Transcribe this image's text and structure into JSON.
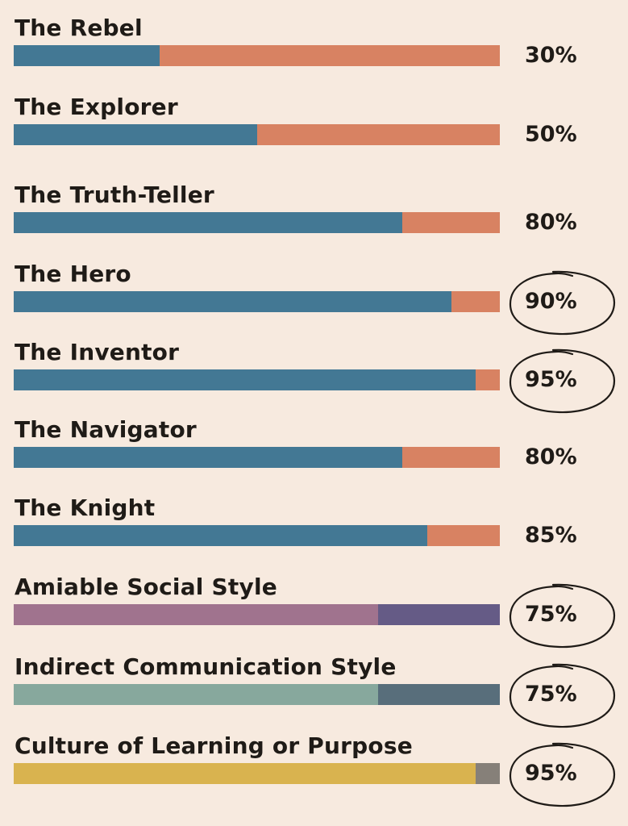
{
  "chart_data": {
    "type": "bar",
    "orientation": "horizontal",
    "stacked_to_100": true,
    "categories": [
      "The Rebel",
      "The Explorer",
      "The Truth-Teller",
      "The Hero",
      "The Inventor",
      "The Navigator",
      "The Knight",
      "Amiable Social Style",
      "Indirect Communication Style",
      "Culture of Learning or Purpose"
    ],
    "values": [
      30,
      50,
      80,
      90,
      95,
      80,
      85,
      75,
      75,
      95
    ],
    "value_labels": [
      "30%",
      "50%",
      "80%",
      "90%",
      "95%",
      "80%",
      "85%",
      "75%",
      "75%",
      "95%"
    ],
    "circled": [
      false,
      false,
      false,
      true,
      true,
      false,
      false,
      true,
      true,
      true
    ],
    "fill_colors": [
      "#437894",
      "#437894",
      "#437894",
      "#437894",
      "#437894",
      "#437894",
      "#437894",
      "#a0738e",
      "#87a89d",
      "#d9b34f"
    ],
    "rest_colors": [
      "#d88262",
      "#d88262",
      "#d88262",
      "#d88262",
      "#d88262",
      "#d88262",
      "#d88262",
      "#655b86",
      "#586e7b",
      "#868079"
    ],
    "ylim": [
      0,
      100
    ],
    "grid": false,
    "legend": "none"
  }
}
